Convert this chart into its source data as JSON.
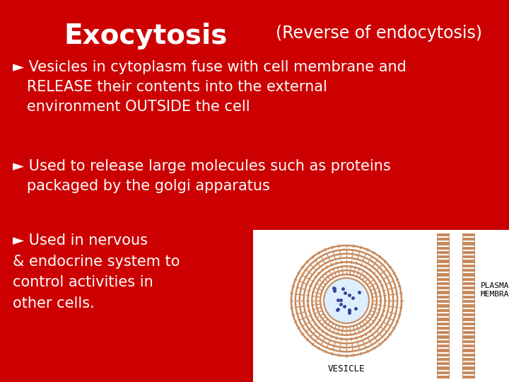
{
  "background_color": "#cc0000",
  "title_text": "Exocytosis",
  "title_subtitle": "(Reverse of endocytosis)",
  "title_color": "#ffffff",
  "title_fontsize": 28,
  "subtitle_fontsize": 17,
  "bullet_fontsize": 15,
  "bullet1_line1": "► Vesicles in cytoplasm fuse with cell membrane and",
  "bullet1_line2": "   RELEASE their contents into the external",
  "bullet1_line3": "   environment OUTSIDE the cell",
  "bullet2_line1": "► Used to release large molecules such as proteins",
  "bullet2_line2": "   packaged by the golgi apparatus",
  "bullet3_line1": "► Used in nervous",
  "bullet3_line2": "& endocrine system to",
  "bullet3_line3": "control activities in",
  "bullet3_line4": "other cells.",
  "vesicle_label": "VESICLE",
  "pm_label": "PLASMA\nMEMBRANE",
  "vesicle_color": "#c8885a",
  "nucleus_color": "#ddeeff",
  "nucleus_dot_color": "#334499",
  "white_bg": "#ffffff"
}
